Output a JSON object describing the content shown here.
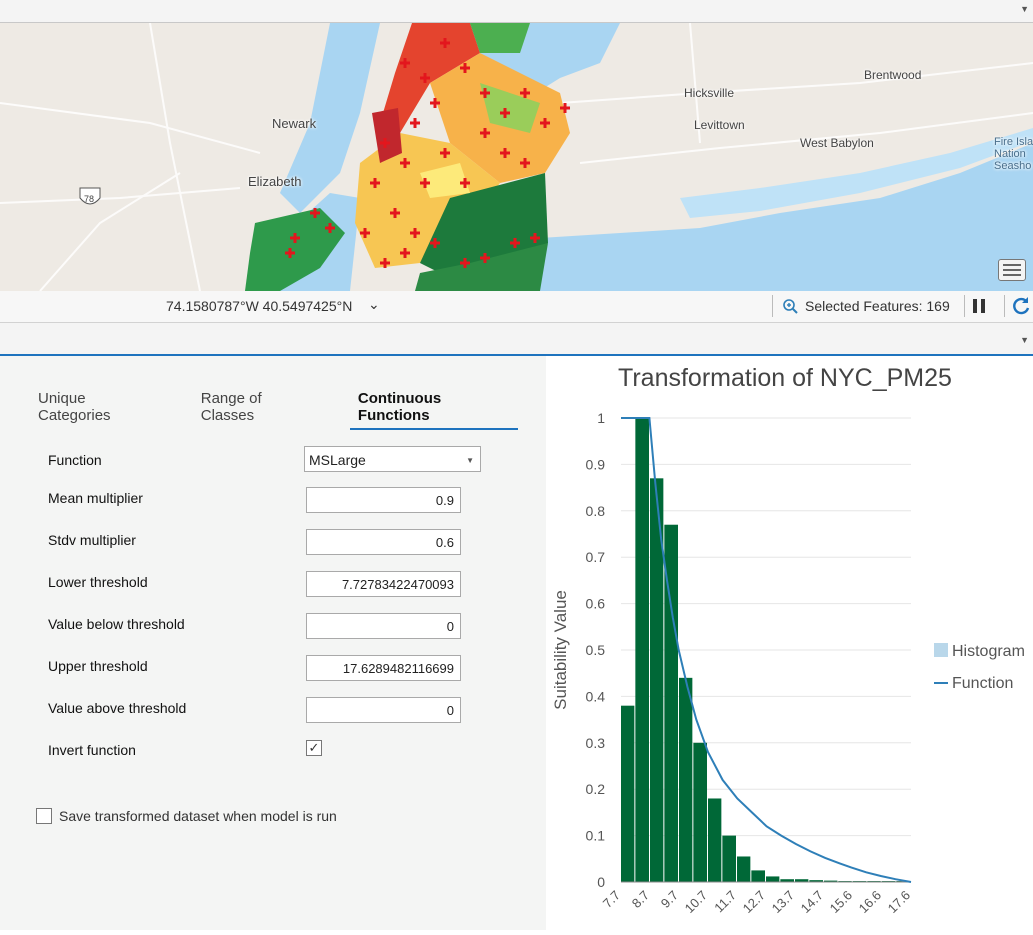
{
  "statusbar": {
    "coordinates": "74.1580787°W 40.5497425°N",
    "chevron": "⌄",
    "selected_features": "Selected Features: 169"
  },
  "map": {
    "labels": {
      "newark": "Newark",
      "elizabeth": "Elizabeth",
      "hicksville": "Hicksville",
      "levittown": "Levittown",
      "west_babylon": "West Babylon",
      "brentwood": "Brentwood",
      "fire_island": "Fire Isla\nNation\nSeasho",
      "highway": "78"
    }
  },
  "tabs": [
    {
      "label": "Unique Categories"
    },
    {
      "label": "Range of Classes"
    },
    {
      "label": "Continuous Functions"
    }
  ],
  "form": {
    "function_label": "Function",
    "function_value": "MSLarge",
    "mean_label": "Mean multiplier",
    "mean_value": "0.9",
    "stdv_label": "Stdv multiplier",
    "stdv_value": "0.6",
    "lower_label": "Lower threshold",
    "lower_value": "7.72783422470093",
    "below_label": "Value below threshold",
    "below_value": "0",
    "upper_label": "Upper threshold",
    "upper_value": "17.6289482116699",
    "above_label": "Value above threshold",
    "above_value": "0",
    "invert_label": "Invert function",
    "invert_checked": true,
    "save_label": "Save transformed dataset when model is run",
    "save_checked": false
  },
  "chart_data": {
    "type": "bar",
    "title": "Transformation of NYC_PM25",
    "ylabel": "Suitability Value",
    "xlabel": "",
    "ylim": [
      0,
      1
    ],
    "yticks": [
      "0",
      "0.1",
      "0.2",
      "0.3",
      "0.4",
      "0.5",
      "0.6",
      "0.7",
      "0.8",
      "0.9",
      "1"
    ],
    "xticks": [
      "7.7",
      "8.7",
      "9.7",
      "10.7",
      "11.7",
      "12.7",
      "13.7",
      "14.7",
      "15.6",
      "16.6",
      "17.6"
    ],
    "histogram_color": "#006837",
    "function_color": "#2e7fb8",
    "legend": [
      {
        "name": "Histogram",
        "color": "#b9d7ea"
      },
      {
        "name": "Function",
        "color": "#2e7fb8"
      }
    ],
    "legend_position": "right",
    "histogram": {
      "bin_edges": [
        7.73,
        8.22,
        8.72,
        9.21,
        9.71,
        10.2,
        10.7,
        11.19,
        11.69,
        12.18,
        12.68,
        13.17,
        13.67,
        14.16,
        14.66,
        15.15,
        15.64,
        16.14,
        16.63,
        17.13,
        17.63
      ],
      "values": [
        0.38,
        1.0,
        0.87,
        0.77,
        0.44,
        0.3,
        0.18,
        0.1,
        0.055,
        0.025,
        0.012,
        0.006,
        0.006,
        0.004,
        0.003,
        0.002,
        0.002,
        0.002,
        0.002,
        0.002
      ]
    },
    "function": {
      "x": [
        7.73,
        8.2,
        8.7,
        8.9,
        9.1,
        9.3,
        9.5,
        9.7,
        10.0,
        10.3,
        10.7,
        11.2,
        11.7,
        12.2,
        12.7,
        13.2,
        13.7,
        14.2,
        14.7,
        15.2,
        15.6,
        16.1,
        16.6,
        17.1,
        17.63
      ],
      "y": [
        1.0,
        1.0,
        1.0,
        0.86,
        0.74,
        0.65,
        0.57,
        0.5,
        0.42,
        0.35,
        0.28,
        0.22,
        0.18,
        0.15,
        0.12,
        0.1,
        0.082,
        0.066,
        0.052,
        0.04,
        0.031,
        0.021,
        0.013,
        0.006,
        0.0
      ]
    }
  }
}
